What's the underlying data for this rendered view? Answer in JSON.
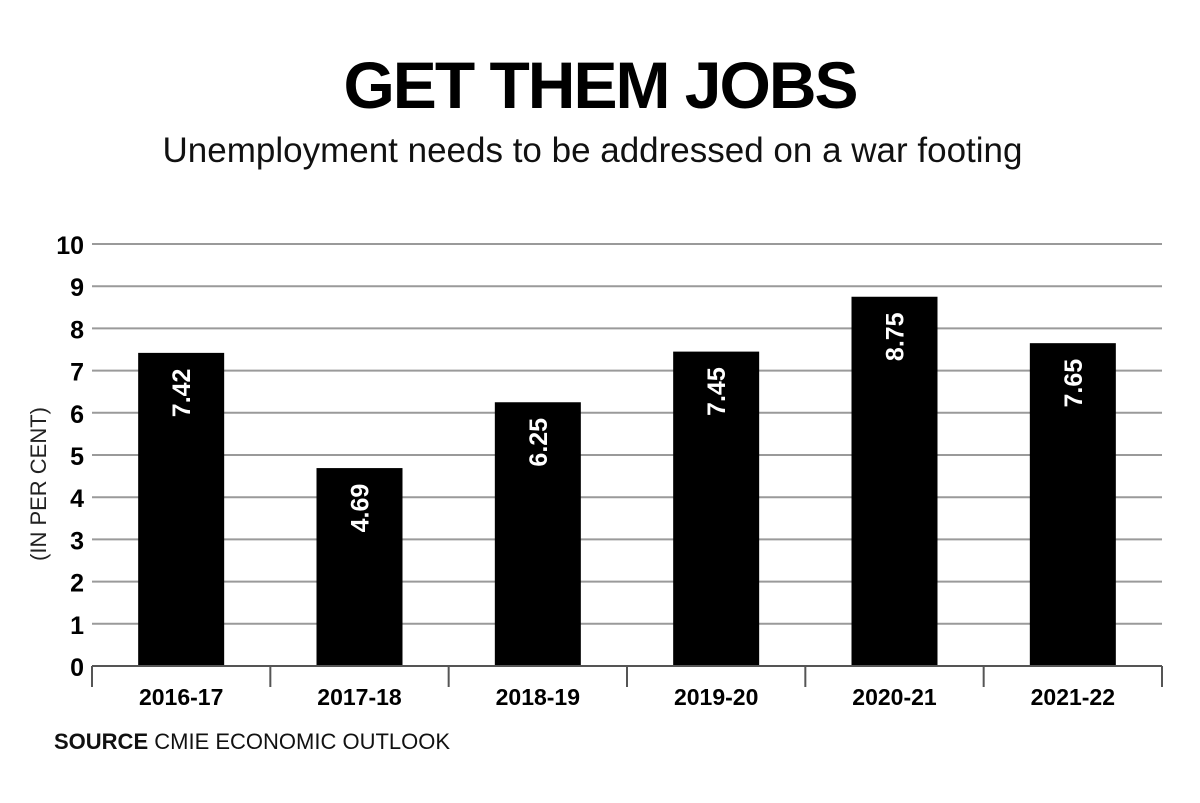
{
  "chart_data": {
    "type": "bar",
    "title": "GET THEM JOBS",
    "subtitle": "Unemployment needs to be addressed on a war footing",
    "ylabel": "(IN PER CENT)",
    "xlabel": "",
    "categories": [
      "2016-17",
      "2017-18",
      "2018-19",
      "2019-20",
      "2020-21",
      "2021-22"
    ],
    "values": [
      7.42,
      4.69,
      6.25,
      7.45,
      8.75,
      7.65
    ],
    "data_labels": [
      "7.42",
      "4.69",
      "6.25",
      "7.45",
      "8.75",
      "7.65"
    ],
    "ylim": [
      0,
      10
    ],
    "yticks": [
      "0",
      "1",
      "2",
      "3",
      "4",
      "5",
      "6",
      "7",
      "8",
      "9",
      "10"
    ],
    "grid": true,
    "legend": "none",
    "colors": {
      "bar": "#000000",
      "grid": "#9a9a9a",
      "axis": "#555555",
      "label_text": "#ffffff"
    }
  },
  "source": {
    "label": "SOURCE",
    "text": "CMIE ECONOMIC OUTLOOK"
  }
}
